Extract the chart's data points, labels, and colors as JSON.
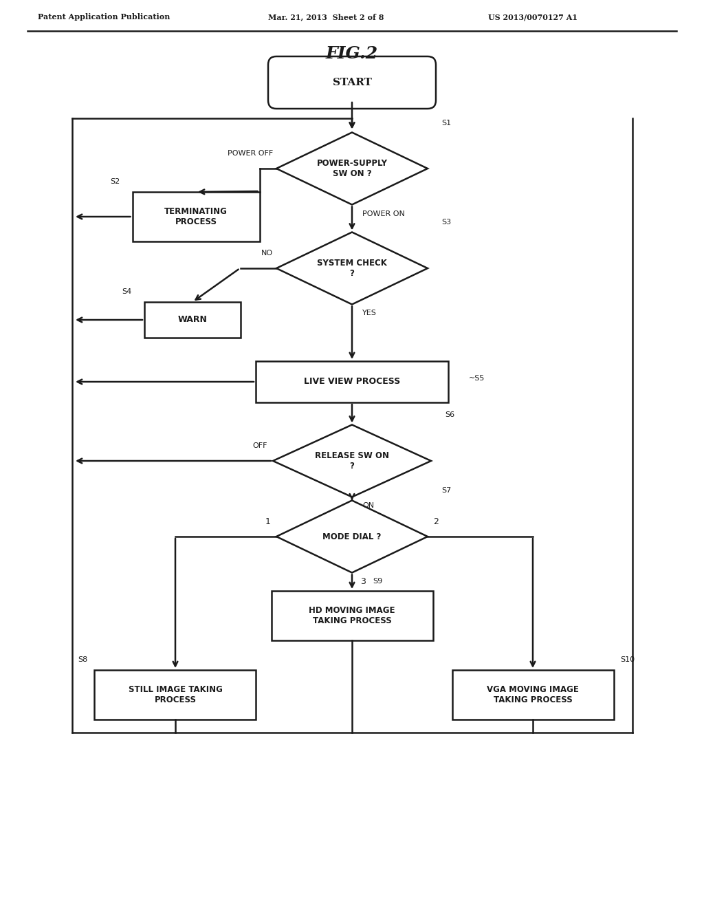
{
  "title": "FIG.2",
  "header_left": "Patent Application Publication",
  "header_mid": "Mar. 21, 2013  Sheet 2 of 8",
  "header_right": "US 2013/0070127 A1",
  "bg_color": "#ffffff",
  "line_color": "#1a1a1a",
  "text_color": "#1a1a1a"
}
